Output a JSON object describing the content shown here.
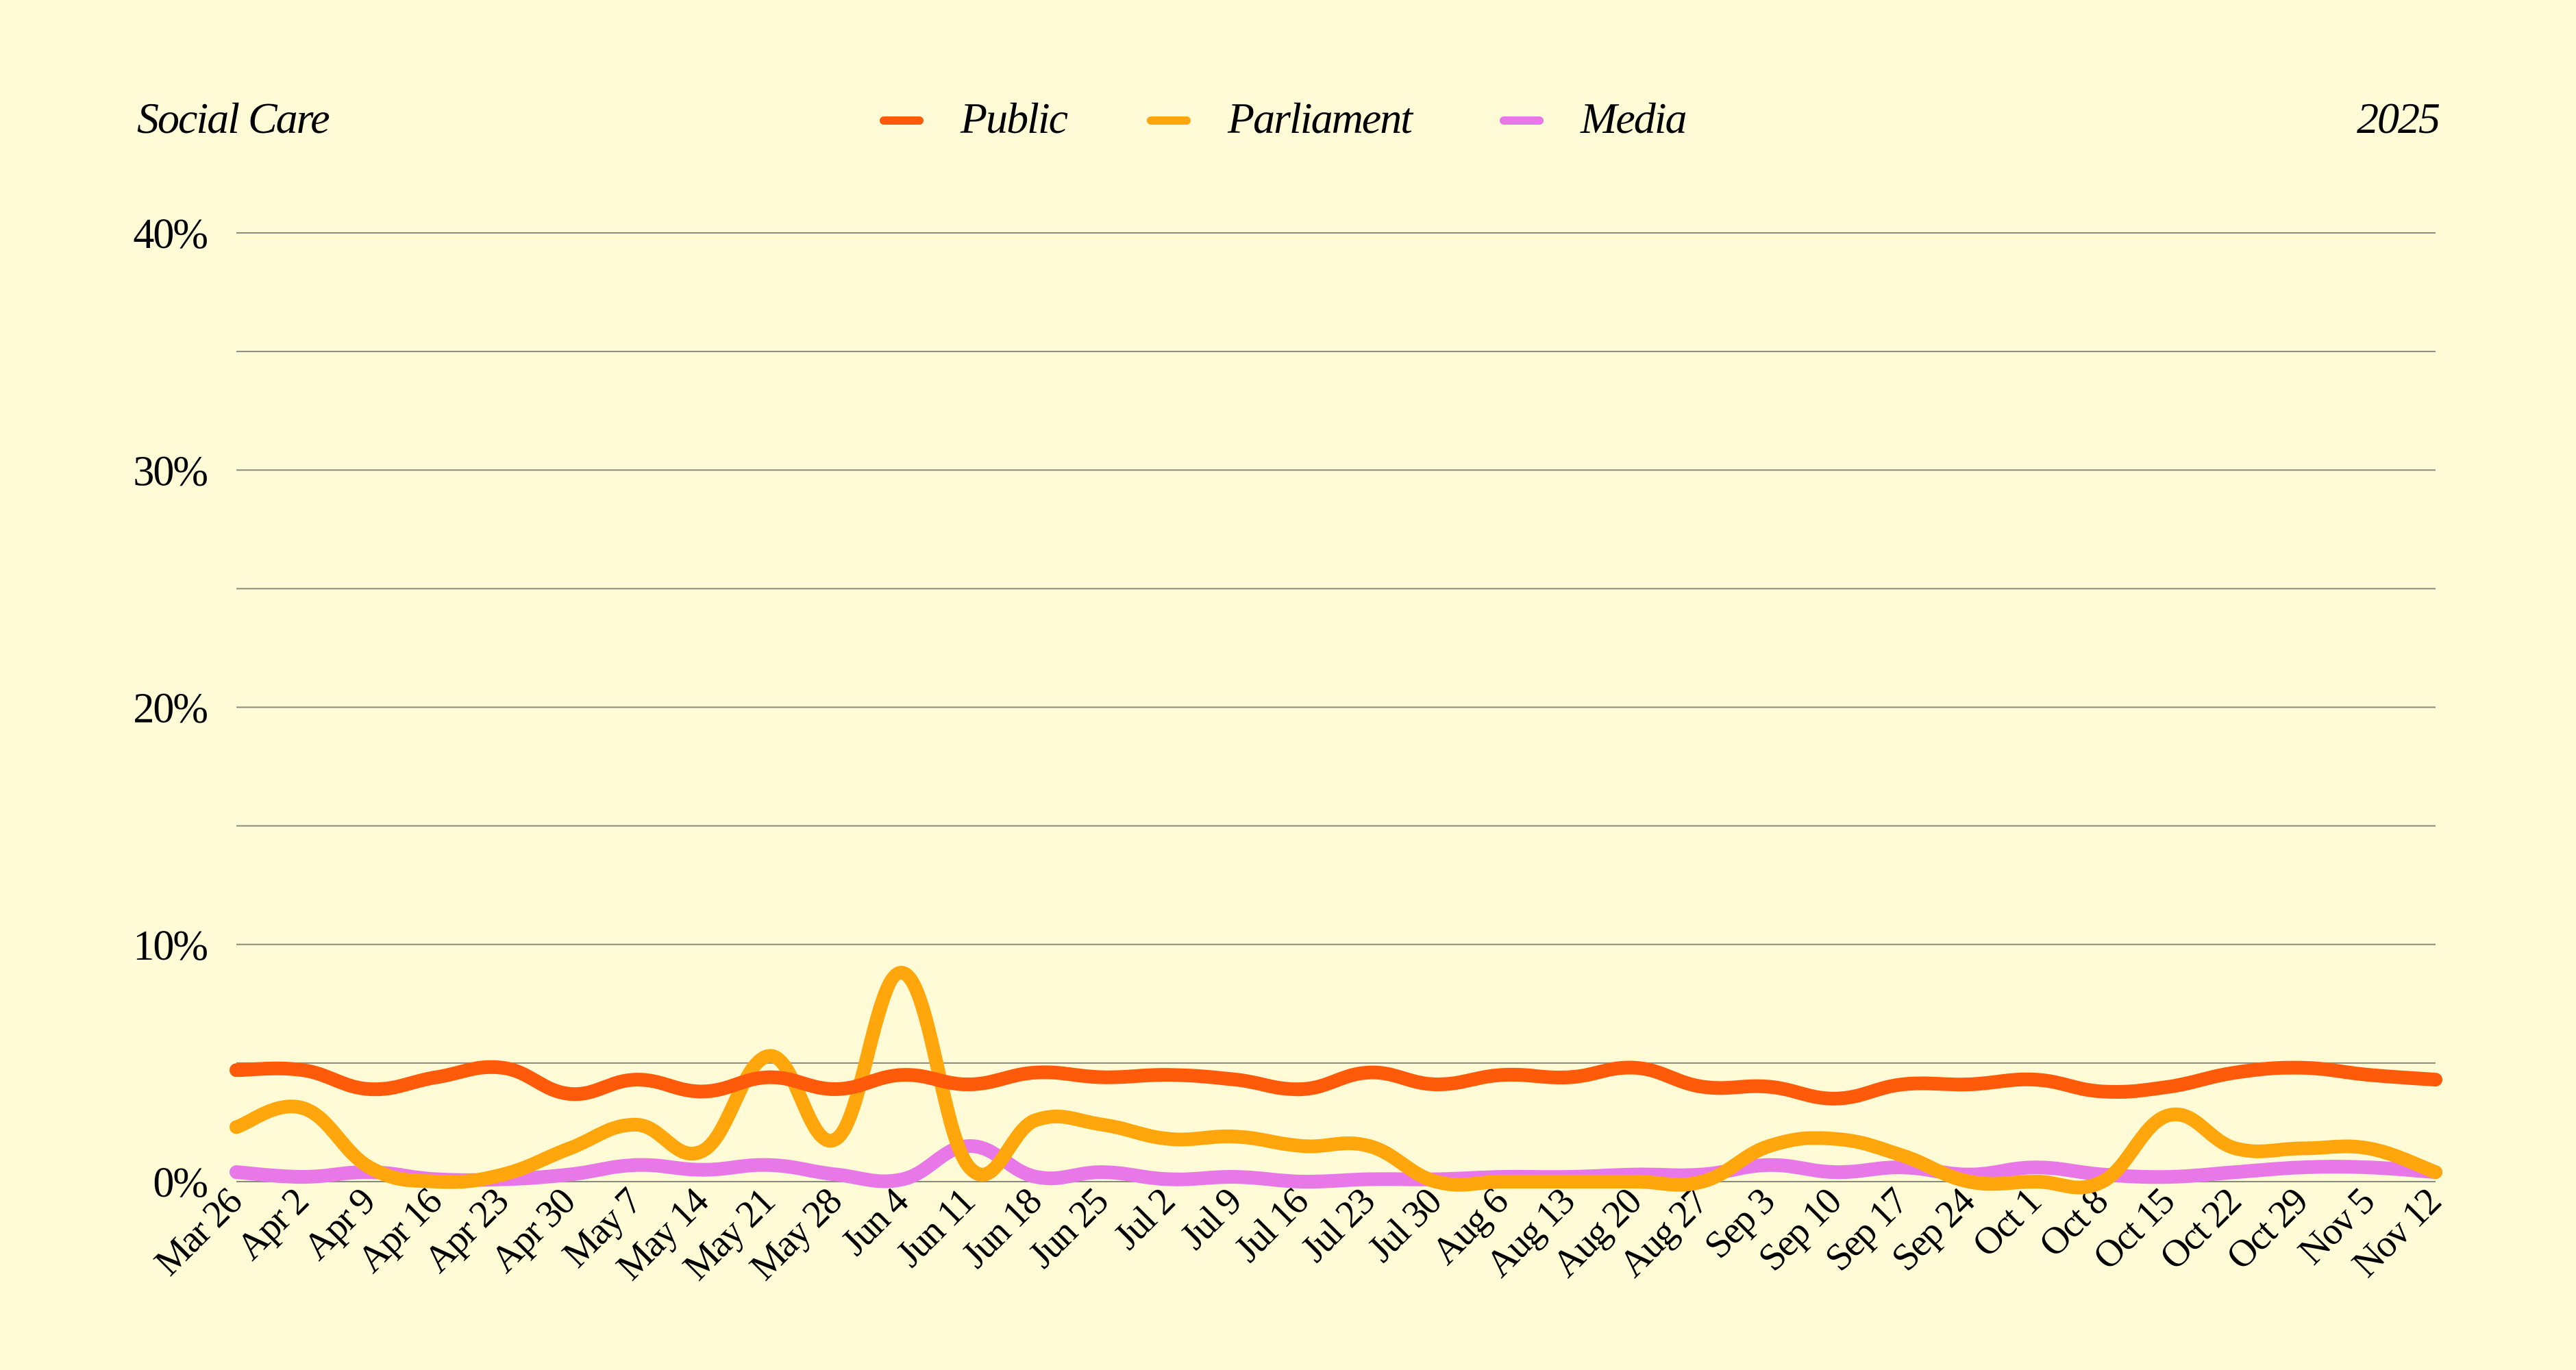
{
  "header": {
    "title": "Social Care",
    "year": "2025"
  },
  "chart_data": {
    "type": "line",
    "title": "Social Care",
    "xlabel": "",
    "ylabel": "",
    "ylim": [
      0,
      40
    ],
    "yticks": [
      "0%",
      "10%",
      "20%",
      "30%",
      "40%"
    ],
    "grid": true,
    "legend_position": "top-center",
    "categories": [
      "Mar 26",
      "Apr 2",
      "Apr 9",
      "Apr 16",
      "Apr 23",
      "Apr 30",
      "May 7",
      "May 14",
      "May 21",
      "May 28",
      "Jun 4",
      "Jun 11",
      "Jun 18",
      "Jun 25",
      "Jul 2",
      "Jul 9",
      "Jul 16",
      "Jul 23",
      "Jul 30",
      "Aug 6",
      "Aug 13",
      "Aug 20",
      "Aug 27",
      "Sep 3",
      "Sep 10",
      "Sep 17",
      "Sep 24",
      "Oct 1",
      "Oct 8",
      "Oct 15",
      "Oct 22",
      "Oct 29",
      "Nov 5",
      "Nov 12"
    ],
    "series": [
      {
        "name": "Public",
        "color": "#ff5a0a",
        "values": [
          4.7,
          4.7,
          3.9,
          4.4,
          4.8,
          3.7,
          4.3,
          3.8,
          4.4,
          3.9,
          4.5,
          4.1,
          4.6,
          4.4,
          4.5,
          4.3,
          3.9,
          4.6,
          4.1,
          4.5,
          4.4,
          4.8,
          4.0,
          4.0,
          3.5,
          4.1,
          4.1,
          4.3,
          3.8,
          4.0,
          4.6,
          4.8,
          4.5,
          4.3
        ]
      },
      {
        "name": "Parliament",
        "color": "#ffa60c",
        "values": [
          2.3,
          3.1,
          0.6,
          0.0,
          0.3,
          1.4,
          2.4,
          1.3,
          5.3,
          1.8,
          8.8,
          0.6,
          2.6,
          2.4,
          1.8,
          1.9,
          1.5,
          1.5,
          0.0,
          0.0,
          0.0,
          0.0,
          0.0,
          1.5,
          1.8,
          1.1,
          0.0,
          0.0,
          0.0,
          2.8,
          1.4,
          1.4,
          1.4,
          0.4
        ]
      },
      {
        "name": "Media",
        "color": "#e878e8",
        "values": [
          0.4,
          0.2,
          0.4,
          0.1,
          0.1,
          0.3,
          0.7,
          0.5,
          0.7,
          0.3,
          0.1,
          1.5,
          0.2,
          0.4,
          0.1,
          0.2,
          0.0,
          0.1,
          0.1,
          0.2,
          0.2,
          0.3,
          0.3,
          0.7,
          0.4,
          0.6,
          0.3,
          0.6,
          0.3,
          0.2,
          0.4,
          0.6,
          0.6,
          0.4
        ]
      }
    ]
  }
}
